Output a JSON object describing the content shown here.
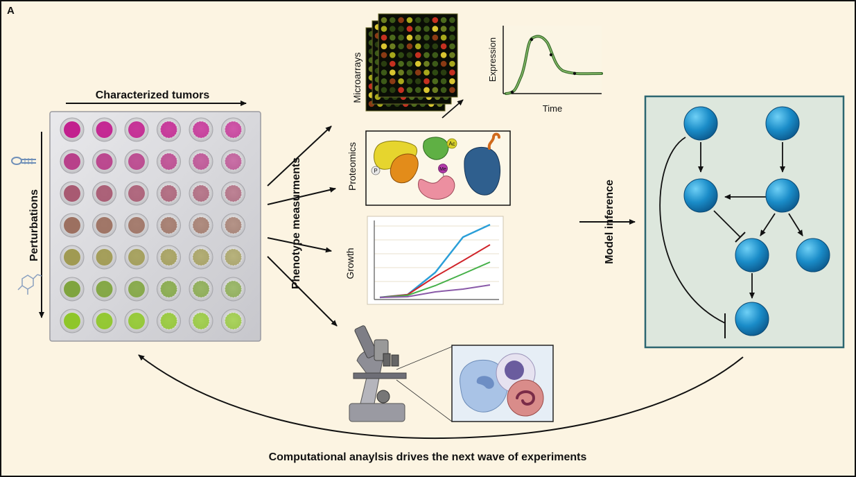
{
  "panel_label": "A",
  "plate": {
    "title": "Characterized tumors",
    "side_label": "Perturbations",
    "row_colors": [
      "#c2208e",
      "#b8408a",
      "#a85a72",
      "#9c7060",
      "#a09a52",
      "#7fa43e",
      "#8fc62a"
    ]
  },
  "measure": {
    "label": "Phenotype measurments",
    "microarrays": "Microarrays",
    "proteomics": "Proteomics",
    "growth": "Growth",
    "expression_plot": {
      "ylabel": "Expression",
      "xlabel": "Time"
    },
    "protein_tags": [
      "Ac",
      "P",
      "Me"
    ]
  },
  "inference": {
    "label": "Model inference"
  },
  "footer": "Computational anaylsis drives the next wave of experiments",
  "colors": {
    "bg": "#fcf4e2",
    "network_bg": "#dde7dd",
    "network_border": "#2c6670",
    "node": "#1a8cc8"
  }
}
